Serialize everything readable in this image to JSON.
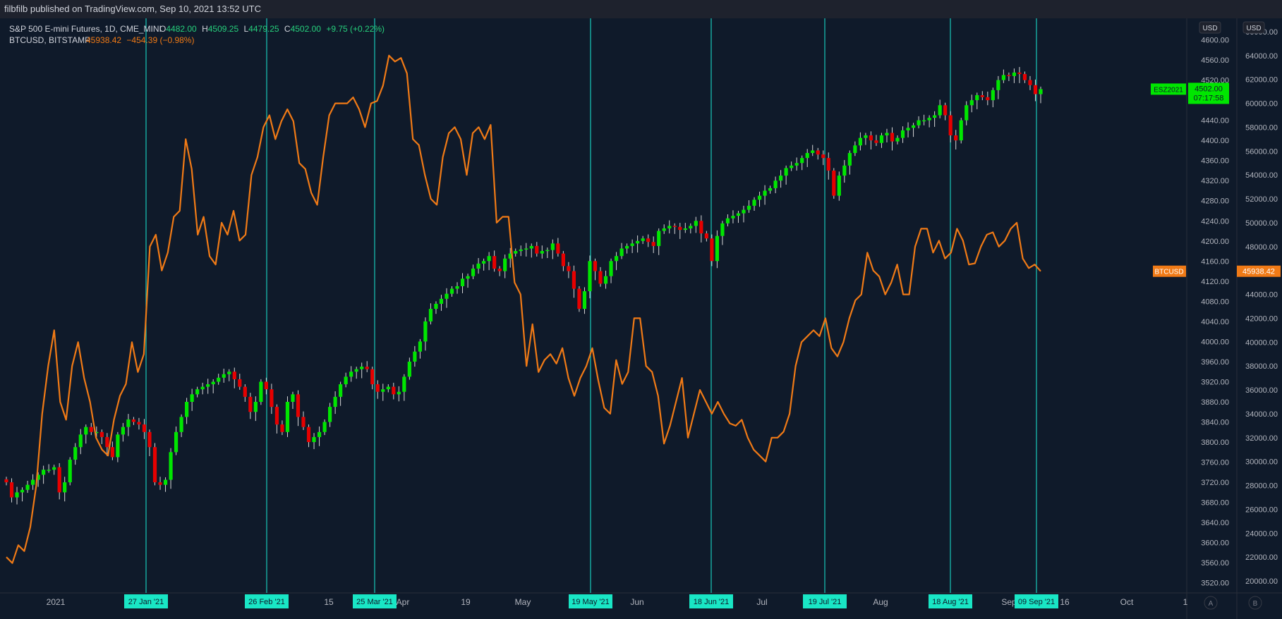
{
  "header": {
    "published": "filbfilb published on TradingView.com, Sep 10, 2021 13:52 UTC"
  },
  "legend": {
    "es": {
      "name": "S&P 500 E-mini Futures, 1D, CME_MINI",
      "o_label": "O",
      "o": "4482.00",
      "h_label": "H",
      "h": "4509.25",
      "l_label": "L",
      "l": "4479.25",
      "c_label": "C",
      "c": "4502.00",
      "chg": "+9.75 (+0.22%)"
    },
    "btc": {
      "name": "BTCUSD, BITSTAMP",
      "price": "45938.42",
      "chg": "−454.39 (−0.98%)"
    }
  },
  "colors": {
    "up": "#00e600",
    "down": "#e60000",
    "btc": "#f07a16",
    "vline": "#19c9b9",
    "bg": "#0f1a2a",
    "text": "#b2b5be"
  },
  "chart_data": {
    "type": "line",
    "x_ticks": [
      "2021",
      "15",
      "Apr",
      "19",
      "May",
      "Jun",
      "Jul",
      "Aug",
      "Sep",
      "16",
      "Oct",
      "1"
    ],
    "vertical_markers": [
      "27 Jan '21",
      "26 Feb '21",
      "25 Mar '21",
      "19 May '21",
      "18 Jun '21",
      "19 Jul '21",
      "18 Aug '21",
      "09 Sep '21"
    ],
    "axes": {
      "es": {
        "range": [
          3500,
          4640
        ],
        "ticks": [
          3520,
          3560,
          3600,
          3640,
          3680,
          3720,
          3760,
          3800,
          3840,
          3880,
          3920,
          3960,
          4000,
          4040,
          4080,
          4120,
          4160,
          4200,
          4240,
          4280,
          4320,
          4360,
          4400,
          4440,
          4480,
          4520,
          4560,
          4600
        ],
        "currency": "USD"
      },
      "btc": {
        "range": [
          19000,
          67000
        ],
        "ticks": [
          20000,
          22000,
          24000,
          26000,
          28000,
          30000,
          32000,
          34000,
          36000,
          38000,
          40000,
          42000,
          44000,
          46000,
          48000,
          50000,
          52000,
          54000,
          56000,
          58000,
          60000,
          62000,
          64000,
          66000
        ],
        "currency": "USD"
      }
    },
    "badges": {
      "es": {
        "symbol": "ESZ2021",
        "price": "4502.00",
        "countdown": "07:17:58"
      },
      "btc": {
        "symbol": "BTCUSD",
        "price": "45938.42"
      }
    },
    "price_scale_labels": [
      "A",
      "B"
    ],
    "series": [
      {
        "name": "S&P 500 E-mini Futures, 1D, CME_MINI",
        "kind": "candlestick",
        "close": [
          3720,
          3690,
          3700,
          3705,
          3715,
          3725,
          3735,
          3745,
          3745,
          3750,
          3700,
          3720,
          3765,
          3790,
          3815,
          3830,
          3820,
          3820,
          3810,
          3790,
          3770,
          3815,
          3830,
          3845,
          3840,
          3835,
          3820,
          3790,
          3720,
          3715,
          3725,
          3780,
          3820,
          3850,
          3880,
          3895,
          3905,
          3910,
          3915,
          3920,
          3928,
          3935,
          3940,
          3925,
          3910,
          3890,
          3860,
          3880,
          3920,
          3905,
          3870,
          3835,
          3820,
          3880,
          3895,
          3850,
          3830,
          3800,
          3810,
          3820,
          3840,
          3870,
          3890,
          3915,
          3930,
          3940,
          3945,
          3950,
          3945,
          3915,
          3900,
          3905,
          3910,
          3895,
          3900,
          3930,
          3960,
          3980,
          4000,
          4040,
          4065,
          4075,
          4085,
          4095,
          4105,
          4110,
          4125,
          4130,
          4145,
          4155,
          4160,
          4170,
          4145,
          4140,
          4165,
          4175,
          4180,
          4183,
          4185,
          4190,
          4175,
          4180,
          4182,
          4195,
          4175,
          4150,
          4140,
          4105,
          4065,
          4100,
          4160,
          4140,
          4115,
          4130,
          4160,
          4170,
          4185,
          4190,
          4195,
          4200,
          4205,
          4198,
          4190,
          4220,
          4225,
          4230,
          4228,
          4222,
          4225,
          4230,
          4240,
          4215,
          4205,
          4160,
          4210,
          4235,
          4245,
          4250,
          4255,
          4262,
          4270,
          4282,
          4290,
          4300,
          4305,
          4320,
          4330,
          4345,
          4350,
          4355,
          4365,
          4375,
          4380,
          4372,
          4365,
          4340,
          4290,
          4330,
          4350,
          4375,
          4390,
          4405,
          4410,
          4400,
          4395,
          4410,
          4415,
          4398,
          4405,
          4420,
          4425,
          4430,
          4440,
          4440,
          4445,
          4450,
          4470,
          4450,
          4410,
          4400,
          4440,
          4470,
          4480,
          4490,
          4486,
          4480,
          4500,
          4520,
          4530,
          4528,
          4535,
          4532,
          4520,
          4510,
          4492,
          4502
        ]
      },
      {
        "name": "BTCUSD, BITSTAMP",
        "kind": "line",
        "close": [
          22000,
          21500,
          23000,
          22500,
          24500,
          28000,
          34000,
          38000,
          41000,
          35000,
          33500,
          38000,
          40000,
          37000,
          35000,
          32000,
          31000,
          30500,
          33500,
          35500,
          36500,
          40000,
          37500,
          39000,
          48000,
          49000,
          46000,
          47500,
          50500,
          51000,
          57000,
          54500,
          49000,
          50500,
          47200,
          46500,
          50000,
          49000,
          51000,
          48500,
          49000,
          54000,
          55500,
          58000,
          59000,
          57000,
          58500,
          59500,
          58500,
          55000,
          54500,
          52500,
          51500,
          55500,
          59000,
          60000,
          60000,
          60000,
          60500,
          59500,
          58000,
          60000,
          60200,
          61500,
          64000,
          63500,
          63800,
          62500,
          57000,
          56500,
          54000,
          52000,
          51500,
          55500,
          57500,
          58000,
          57000,
          54000,
          57500,
          58000,
          57000,
          58200,
          50000,
          50500,
          50500,
          45000,
          44000,
          38000,
          41500,
          37500,
          38500,
          39000,
          38200,
          39500,
          37000,
          35500,
          37000,
          38000,
          39500,
          36800,
          34500,
          34000,
          38500,
          36500,
          37500,
          42000,
          42000,
          38000,
          37500,
          35500,
          31500,
          33000,
          35000,
          37000,
          32000,
          34000,
          36000,
          35000,
          34000,
          35000,
          34000,
          33200,
          33000,
          33500,
          32000,
          31000,
          30500,
          30000,
          32000,
          32000,
          32500,
          34000,
          38000,
          40000,
          40500,
          41000,
          40500,
          42000,
          39500,
          38800,
          40000,
          42000,
          43500,
          44000,
          47500,
          46000,
          45500,
          44000,
          45000,
          46500,
          44000,
          44000,
          48000,
          49500,
          49500,
          47500,
          48500,
          47000,
          47500,
          49500,
          48500,
          46500,
          46600,
          48000,
          49000,
          49200,
          48000,
          48500,
          49500,
          50000,
          47000,
          46200,
          46500,
          45938
        ]
      }
    ]
  }
}
